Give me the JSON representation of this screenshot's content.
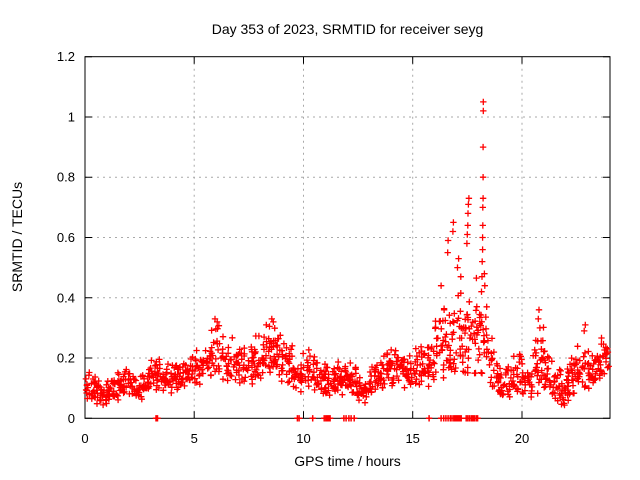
{
  "window": {
    "title": "Day 353 of 2023, SRMTID for receiver seyg"
  },
  "chart_data": {
    "type": "scatter",
    "title": "Day 353 of 2023, SRMTID for receiver seyg",
    "xlabel": "GPS time / hours",
    "ylabel": "SRMTID / TECUs",
    "series_name": "SRMTID",
    "xlim": [
      0,
      24.03
    ],
    "ylim": [
      0,
      1.2
    ],
    "xticks": [
      0,
      5,
      10,
      15,
      20
    ],
    "xtick_labels": [
      "0",
      "5",
      "10",
      "15",
      "20"
    ],
    "yticks": [
      0,
      0.2,
      0.4,
      0.6,
      0.8,
      1.0,
      1.2
    ],
    "ytick_labels": [
      "0",
      "0.2",
      "0.4",
      "0.6",
      "0.8",
      "1",
      "1.2"
    ],
    "legend": "none",
    "grid": {
      "show": true,
      "style": "dashed",
      "color": "#a9a9a9"
    },
    "marker": {
      "shape": "plus",
      "color": "#ff0000",
      "size": 7
    },
    "colors": {
      "axis": "#000000",
      "background": "#ffffff"
    },
    "bin_width": 0.25,
    "points_per_bin": 13,
    "seed": 1353,
    "band_bins": [
      [
        0.0,
        0.05,
        0.16
      ],
      [
        0.25,
        0.05,
        0.17
      ],
      [
        0.5,
        0.04,
        0.15
      ],
      [
        0.75,
        0.04,
        0.13
      ],
      [
        1.0,
        0.05,
        0.14
      ],
      [
        1.25,
        0.05,
        0.15
      ],
      [
        1.5,
        0.06,
        0.17
      ],
      [
        1.75,
        0.07,
        0.19
      ],
      [
        2.0,
        0.05,
        0.16
      ],
      [
        2.25,
        0.05,
        0.15
      ],
      [
        2.5,
        0.06,
        0.16
      ],
      [
        2.75,
        0.07,
        0.18
      ],
      [
        3.0,
        0.08,
        0.2
      ],
      [
        3.25,
        0.08,
        0.21
      ],
      [
        3.5,
        0.08,
        0.18
      ],
      [
        3.75,
        0.08,
        0.19
      ],
      [
        4.0,
        0.09,
        0.22
      ],
      [
        4.25,
        0.09,
        0.2
      ],
      [
        4.5,
        0.1,
        0.21
      ],
      [
        4.75,
        0.1,
        0.22
      ],
      [
        5.0,
        0.1,
        0.24
      ],
      [
        5.25,
        0.11,
        0.26
      ],
      [
        5.5,
        0.12,
        0.29
      ],
      [
        5.75,
        0.12,
        0.31
      ],
      [
        6.0,
        0.12,
        0.33
      ],
      [
        6.25,
        0.12,
        0.3
      ],
      [
        6.5,
        0.11,
        0.27
      ],
      [
        6.75,
        0.1,
        0.26
      ],
      [
        7.0,
        0.1,
        0.25
      ],
      [
        7.25,
        0.1,
        0.26
      ],
      [
        7.5,
        0.11,
        0.27
      ],
      [
        7.75,
        0.12,
        0.29
      ],
      [
        8.0,
        0.13,
        0.3
      ],
      [
        8.25,
        0.13,
        0.32
      ],
      [
        8.5,
        0.14,
        0.33
      ],
      [
        8.75,
        0.13,
        0.3
      ],
      [
        9.0,
        0.11,
        0.28
      ],
      [
        9.25,
        0.1,
        0.26
      ],
      [
        9.5,
        0.08,
        0.24
      ],
      [
        9.75,
        0.07,
        0.22
      ],
      [
        10.0,
        0.09,
        0.23
      ],
      [
        10.25,
        0.1,
        0.23
      ],
      [
        10.5,
        0.08,
        0.21
      ],
      [
        10.75,
        0.07,
        0.2
      ],
      [
        11.0,
        0.06,
        0.19
      ],
      [
        11.25,
        0.07,
        0.2
      ],
      [
        11.5,
        0.08,
        0.22
      ],
      [
        11.75,
        0.07,
        0.21
      ],
      [
        12.0,
        0.06,
        0.2
      ],
      [
        12.25,
        0.06,
        0.19
      ],
      [
        12.5,
        0.05,
        0.18
      ],
      [
        12.75,
        0.04,
        0.17
      ],
      [
        13.0,
        0.07,
        0.19
      ],
      [
        13.25,
        0.08,
        0.21
      ],
      [
        13.5,
        0.09,
        0.23
      ],
      [
        13.75,
        0.1,
        0.25
      ],
      [
        14.0,
        0.1,
        0.26
      ],
      [
        14.25,
        0.1,
        0.25
      ],
      [
        14.5,
        0.09,
        0.24
      ],
      [
        14.75,
        0.09,
        0.22
      ],
      [
        15.0,
        0.1,
        0.24
      ],
      [
        15.25,
        0.1,
        0.26
      ],
      [
        15.5,
        0.1,
        0.27
      ],
      [
        15.75,
        0.11,
        0.28
      ],
      [
        16.0,
        0.12,
        0.35
      ],
      [
        16.25,
        0.13,
        0.45
      ],
      [
        16.5,
        0.12,
        0.4
      ],
      [
        16.75,
        0.12,
        0.42
      ],
      [
        17.0,
        0.13,
        0.5
      ],
      [
        17.25,
        0.14,
        0.48
      ],
      [
        17.5,
        0.12,
        0.52
      ],
      [
        17.75,
        0.12,
        0.55
      ],
      [
        18.0,
        0.12,
        0.5
      ],
      [
        18.25,
        0.14,
        0.45
      ],
      [
        18.5,
        0.08,
        0.3
      ],
      [
        18.75,
        0.06,
        0.22
      ],
      [
        19.0,
        0.05,
        0.2
      ],
      [
        19.25,
        0.06,
        0.22
      ],
      [
        19.5,
        0.06,
        0.24
      ],
      [
        19.75,
        0.07,
        0.25
      ],
      [
        20.0,
        0.05,
        0.22
      ],
      [
        20.25,
        0.06,
        0.24
      ],
      [
        20.5,
        0.08,
        0.3
      ],
      [
        20.75,
        0.1,
        0.36
      ],
      [
        21.0,
        0.07,
        0.25
      ],
      [
        21.25,
        0.06,
        0.22
      ],
      [
        21.5,
        0.04,
        0.19
      ],
      [
        21.75,
        0.03,
        0.17
      ],
      [
        22.0,
        0.05,
        0.2
      ],
      [
        22.25,
        0.06,
        0.22
      ],
      [
        22.5,
        0.08,
        0.26
      ],
      [
        22.75,
        0.1,
        0.31
      ],
      [
        23.0,
        0.09,
        0.26
      ],
      [
        23.25,
        0.1,
        0.24
      ],
      [
        23.5,
        0.1,
        0.28
      ],
      [
        23.75,
        0.12,
        0.28
      ]
    ],
    "outliers": [
      [
        5.95,
        0.33
      ],
      [
        6.05,
        0.32
      ],
      [
        8.3,
        0.31
      ],
      [
        8.55,
        0.33
      ],
      [
        8.62,
        0.32
      ],
      [
        16.3,
        0.44
      ],
      [
        16.6,
        0.55
      ],
      [
        16.62,
        0.59
      ],
      [
        16.84,
        0.62
      ],
      [
        16.86,
        0.65
      ],
      [
        17.05,
        0.5
      ],
      [
        17.1,
        0.53
      ],
      [
        17.2,
        0.47
      ],
      [
        17.48,
        0.58
      ],
      [
        17.5,
        0.61
      ],
      [
        17.52,
        0.64
      ],
      [
        17.53,
        0.68
      ],
      [
        17.55,
        0.71
      ],
      [
        17.57,
        0.73
      ],
      [
        18.15,
        0.42
      ],
      [
        18.17,
        0.47
      ],
      [
        18.18,
        0.52
      ],
      [
        18.2,
        0.56
      ],
      [
        18.2,
        0.6
      ],
      [
        18.21,
        0.64
      ],
      [
        18.21,
        0.7
      ],
      [
        18.22,
        0.73
      ],
      [
        18.22,
        0.8
      ],
      [
        18.22,
        0.9
      ],
      [
        18.23,
        1.02
      ],
      [
        18.23,
        1.05
      ],
      [
        18.28,
        0.48
      ],
      [
        18.3,
        0.44
      ],
      [
        20.75,
        0.33
      ],
      [
        20.78,
        0.36
      ],
      [
        20.82,
        0.3
      ],
      [
        22.85,
        0.29
      ],
      [
        22.9,
        0.31
      ]
    ],
    "zero_marks": [
      3.25,
      3.32,
      9.72,
      9.8,
      10.42,
      10.95,
      11.02,
      11.08,
      11.15,
      11.22,
      11.85,
      11.95,
      12.08,
      12.18,
      12.32,
      15.75,
      16.3,
      16.42,
      16.52,
      16.62,
      16.72,
      16.8,
      16.88,
      16.95,
      17.02,
      17.08,
      17.15,
      17.22,
      17.45,
      17.52,
      17.6,
      17.68,
      17.75,
      17.82,
      17.9,
      17.97
    ]
  }
}
